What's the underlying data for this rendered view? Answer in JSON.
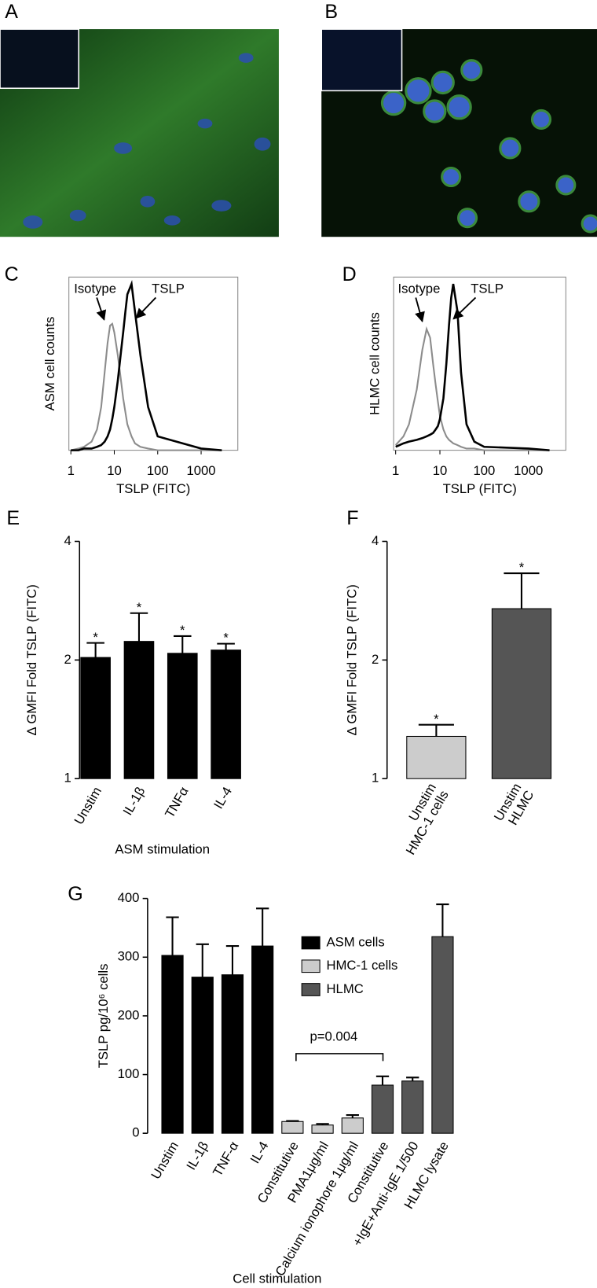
{
  "images": [
    {
      "panel": "A"
    },
    {
      "panel": "B"
    }
  ],
  "chart_data": [
    {
      "panel": "C",
      "type": "line",
      "ylabel": "ASM cell counts",
      "xlabel": "TSLP (FITC)",
      "log_x": true,
      "xlim": [
        0.9,
        7000
      ],
      "xticks": [
        1,
        10,
        100,
        1000
      ],
      "ylim": [
        0,
        100
      ],
      "x": [
        1,
        1.5,
        2,
        3,
        4,
        5,
        6,
        7,
        8,
        9,
        10,
        12,
        14,
        16,
        18,
        20,
        25,
        30,
        40,
        60,
        100,
        1000,
        3000
      ],
      "series": [
        {
          "name": "Isotype",
          "color": "#8c8c8c",
          "values": [
            0,
            1,
            2,
            5,
            12,
            25,
            45,
            62,
            72,
            73,
            68,
            55,
            42,
            30,
            22,
            15,
            8,
            4,
            2,
            1,
            0,
            0,
            0
          ]
        },
        {
          "name": "TSLP",
          "color": "#000000",
          "values": [
            0,
            0,
            1,
            1,
            2,
            3,
            5,
            8,
            12,
            18,
            25,
            40,
            55,
            68,
            80,
            90,
            96,
            80,
            55,
            25,
            8,
            1,
            0
          ]
        }
      ]
    },
    {
      "panel": "D",
      "type": "line",
      "ylabel": "HLMC cell counts",
      "xlabel": "TSLP (FITC)",
      "log_x": true,
      "xlim": [
        0.9,
        7000
      ],
      "xticks": [
        1,
        10,
        100,
        1000
      ],
      "ylim": [
        0,
        100
      ],
      "x": [
        1,
        1.5,
        2,
        3,
        4,
        5,
        6,
        7,
        8,
        9,
        10,
        12,
        14,
        16,
        18,
        20,
        25,
        30,
        40,
        60,
        100,
        1000,
        3000
      ],
      "series": [
        {
          "name": "Isotype",
          "color": "#8c8c8c",
          "values": [
            3,
            8,
            15,
            35,
            58,
            70,
            65,
            50,
            38,
            28,
            20,
            12,
            8,
            6,
            5,
            4,
            3,
            2,
            1,
            1,
            0,
            0,
            0
          ]
        },
        {
          "name": "TSLP",
          "color": "#000000",
          "values": [
            2,
            4,
            5,
            6,
            7,
            8,
            9,
            10,
            12,
            14,
            18,
            30,
            50,
            72,
            88,
            96,
            80,
            45,
            15,
            5,
            2,
            1,
            0
          ]
        }
      ]
    },
    {
      "panel": "E",
      "type": "bar",
      "log_y": true,
      "ylabel": "Δ GMFI Fold  TSLP (FITC)",
      "xlabel": "ASM stimulation",
      "categories": [
        "Unstim",
        "IL-1β",
        "TNFα",
        "IL-4"
      ],
      "values": [
        2.03,
        2.23,
        2.08,
        2.12
      ],
      "errors": [
        0.18,
        0.4,
        0.22,
        0.08
      ],
      "significance": [
        "*",
        "*",
        "*",
        "*"
      ],
      "color": "#000000",
      "ylim": [
        1,
        4
      ],
      "yticks": [
        1,
        2,
        4
      ]
    },
    {
      "panel": "F",
      "type": "bar",
      "log_y": true,
      "ylabel": "Δ GMFI Fold  TSLP (FITC)",
      "categories": [
        [
          "Unstim",
          "HMC-1 cells"
        ],
        [
          "Unstim",
          "HLMC"
        ]
      ],
      "values": [
        1.28,
        2.7
      ],
      "errors": [
        0.09,
        0.62
      ],
      "significance": [
        "*",
        "*"
      ],
      "colors": [
        "#cccccc",
        "#555555"
      ],
      "ylim": [
        1,
        4
      ],
      "yticks": [
        1,
        2,
        4
      ]
    },
    {
      "panel": "G",
      "type": "bar",
      "ylabel": "TSLP pg/10⁶ cells",
      "xlabel": "Cell stimulation",
      "annotation": "p=0.004",
      "legend": "upper right",
      "ylim": [
        0,
        400
      ],
      "yticks": [
        0,
        100,
        200,
        300,
        400
      ],
      "categories": [
        "Unstim",
        "IL-1β",
        "TNF-α",
        "IL-4",
        "Constitutive",
        "PMA1μg/ml",
        "Calcium ionophore 1μg/ml",
        "Constitutive",
        "+IgE+Anti-IgE 1/500",
        "HLMC lysate"
      ],
      "series": [
        {
          "name": "ASM cells",
          "color": "#000000",
          "values": [
            303,
            266,
            270,
            319,
            null,
            null,
            null,
            null,
            null,
            null
          ],
          "errors": [
            65,
            56,
            49,
            64,
            null,
            null,
            null,
            null,
            null,
            null
          ]
        },
        {
          "name": "HMC-1 cells",
          "color": "#cccccc",
          "values": [
            null,
            null,
            null,
            null,
            20,
            14,
            26,
            null,
            null,
            null
          ],
          "errors": [
            null,
            null,
            null,
            null,
            1,
            2,
            5,
            null,
            null,
            null
          ]
        },
        {
          "name": "HLMC",
          "color": "#555555",
          "values": [
            null,
            null,
            null,
            null,
            null,
            null,
            null,
            82,
            89,
            335
          ],
          "errors": [
            null,
            null,
            null,
            null,
            null,
            null,
            null,
            15,
            6,
            55
          ]
        }
      ]
    }
  ]
}
